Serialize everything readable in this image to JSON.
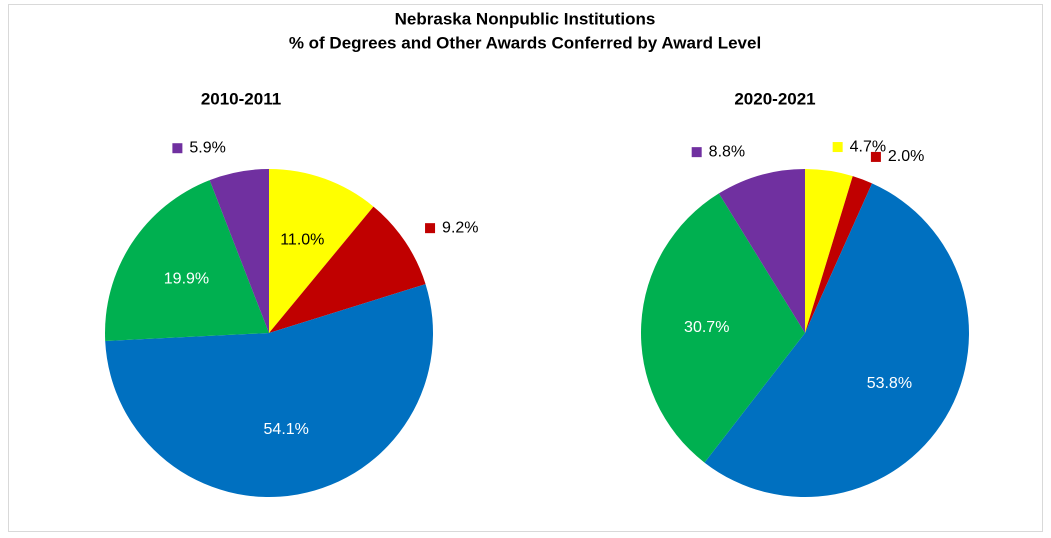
{
  "title": [
    "Nebraska Nonpublic Institutions",
    "% of Degrees and Other Awards Conferred by Award Level"
  ],
  "chart_data": [
    {
      "type": "pie",
      "title": "2010-2011",
      "values": [
        11.0,
        9.2,
        54.1,
        19.9,
        5.9
      ],
      "value_labels": [
        "11.0%",
        "9.2%",
        "54.1%",
        "19.9%",
        "5.9%"
      ],
      "colors": [
        "#ffff00",
        "#c00000",
        "#0070c0",
        "#00b050",
        "#7030a0"
      ]
    },
    {
      "type": "pie",
      "title": "2020-2021",
      "values": [
        4.7,
        2.0,
        53.8,
        30.7,
        8.8
      ],
      "value_labels": [
        "4.7%",
        "2.0%",
        "53.8%",
        "30.7%",
        "8.8%"
      ],
      "colors": [
        "#ffff00",
        "#c00000",
        "#0070c0",
        "#00b050",
        "#7030a0"
      ]
    }
  ]
}
